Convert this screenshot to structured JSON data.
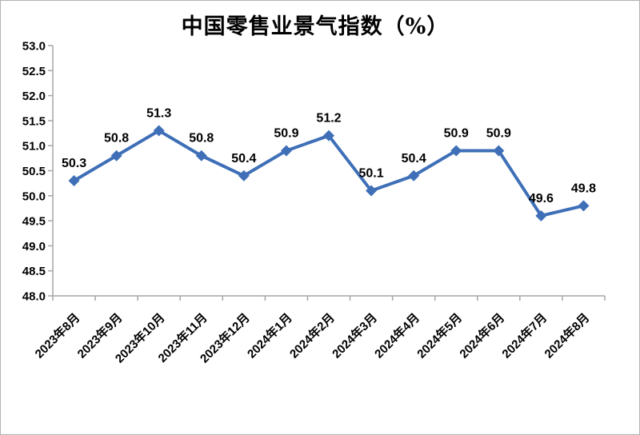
{
  "chart_data": {
    "type": "line",
    "title": "中国零售业景气指数（%）",
    "categories": [
      "2023年8月",
      "2023年9月",
      "2023年10月",
      "2023年11月",
      "2023年12月",
      "2024年1月",
      "2024年2月",
      "2024年3月",
      "2024年4月",
      "2024年5月",
      "2024年6月",
      "2024年7月",
      "2024年8月"
    ],
    "values": [
      50.3,
      50.8,
      51.3,
      50.8,
      50.4,
      50.9,
      51.2,
      50.1,
      50.4,
      50.9,
      50.9,
      49.6,
      49.8
    ],
    "ylim": [
      48.0,
      53.0
    ],
    "ytick_step": 0.5,
    "ytick_labels": [
      "48.0",
      "48.5",
      "49.0",
      "49.5",
      "50.0",
      "50.5",
      "51.0",
      "51.5",
      "52.0",
      "52.5",
      "53.0"
    ],
    "grid": false,
    "legend": "none",
    "marker": "diamond",
    "xlabel": "",
    "ylabel": "",
    "colors": {
      "line": "#3E6FB7",
      "marker": "#3E6FB7",
      "axis": "#A6A6A6",
      "text": "#000000",
      "background": "#FFFFFF"
    }
  }
}
